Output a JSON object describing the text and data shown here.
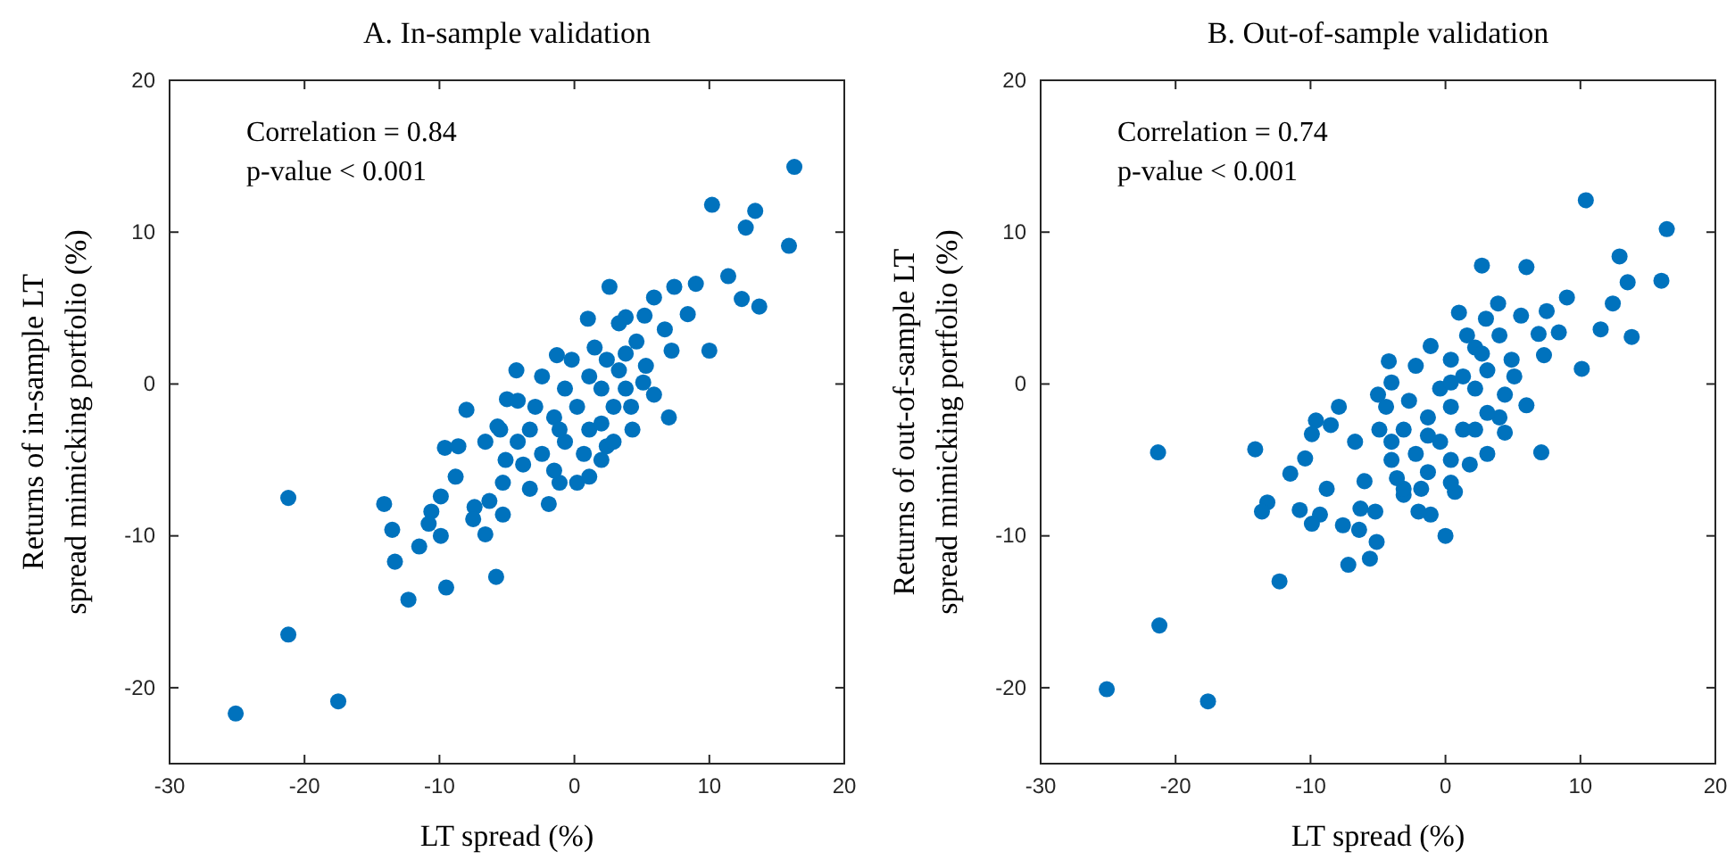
{
  "chart_data": [
    {
      "type": "scatter",
      "title": "A. In-sample validation",
      "xlabel": "LT spread (%)",
      "ylabel": "Returns of in-sample LT\nspread mimicking portfolio (%)",
      "annotations": [
        "Correlation = 0.84",
        "p-value < 0.001"
      ],
      "xlim": [
        -30,
        20
      ],
      "ylim": [
        -25,
        20
      ],
      "xticks": [
        -30,
        -20,
        -10,
        0,
        10,
        20
      ],
      "yticks": [
        -20,
        -10,
        0,
        10,
        20
      ],
      "grid": false,
      "marker": "circle",
      "series": [
        {
          "color": "#0072bd",
          "x": [
            16.3,
            10.2,
            13.4,
            12.7,
            15.9,
            11.4,
            12.4,
            13.7,
            2.6,
            7.4,
            9.0,
            5.9,
            8.4,
            10.0,
            5.2,
            3.8,
            1.0,
            6.7,
            7.2,
            7.0,
            5.9,
            4.3,
            2.4,
            0.2,
            -1.9,
            -4.3,
            -8.0,
            -9.6,
            -8.6,
            -8.8,
            -6.6,
            -5.7,
            -5.0,
            -1.3,
            -21.2,
            -14.1,
            -9.9,
            -10.6,
            -13.5,
            -10.8,
            -9.9,
            -11.5,
            -13.3,
            -7.4,
            -6.6,
            -6.3,
            -5.3,
            -12.3,
            -9.5,
            -5.8,
            -21.2,
            -17.5,
            -25.1,
            -7.5,
            -5.3,
            -3.3,
            -1.1,
            1.1,
            2.0,
            2.9,
            4.2,
            5.1,
            5.3,
            4.6,
            3.3,
            1.5,
            -0.2,
            -2.4,
            -4.2,
            -5.5,
            -5.1,
            -3.3,
            -1.5,
            0.2,
            2.0,
            3.3,
            -2.4,
            -0.7,
            1.1,
            2.9,
            -3.8,
            -1.5,
            0.7,
            2.0,
            3.8,
            1.1,
            -0.7,
            -2.9,
            -1.1,
            -4.2,
            3.8,
            2.4
          ],
          "values": [
            14.3,
            11.8,
            11.4,
            10.3,
            9.1,
            7.1,
            5.6,
            5.1,
            6.4,
            6.4,
            6.6,
            5.7,
            4.6,
            2.2,
            4.5,
            4.4,
            4.3,
            3.6,
            2.2,
            -2.2,
            -0.7,
            -3.0,
            -4.1,
            -6.5,
            -7.9,
            0.9,
            -1.7,
            -4.2,
            -4.1,
            -6.1,
            -3.8,
            -2.8,
            -1.0,
            1.9,
            -7.5,
            -7.9,
            -7.4,
            -8.4,
            -9.6,
            -9.2,
            -10.0,
            -10.7,
            -11.7,
            -8.1,
            -9.9,
            -7.7,
            -8.6,
            -14.2,
            -13.4,
            -12.7,
            -16.5,
            -20.9,
            -21.7,
            -8.9,
            -6.5,
            -6.9,
            -6.5,
            -6.1,
            -5.0,
            -3.8,
            -1.5,
            0.1,
            1.2,
            2.8,
            4.0,
            2.4,
            1.6,
            0.5,
            -1.1,
            -3.0,
            -5.0,
            -3.0,
            -2.2,
            -1.5,
            -0.3,
            0.9,
            -4.6,
            -3.8,
            -3.0,
            -1.5,
            -5.3,
            -5.7,
            -4.6,
            -2.6,
            -0.3,
            0.5,
            -0.3,
            -1.5,
            -3.0,
            -3.8,
            2.0,
            1.6
          ]
        }
      ]
    },
    {
      "type": "scatter",
      "title": "B. Out-of-sample validation",
      "xlabel": "LT spread (%)",
      "ylabel": "Returns of out-of-sample LT\nspread mimicking portfolio (%)",
      "annotations": [
        "Correlation = 0.74",
        "p-value < 0.001"
      ],
      "xlim": [
        -30,
        20
      ],
      "ylim": [
        -25,
        20
      ],
      "xticks": [
        -30,
        -20,
        -10,
        0,
        10,
        20
      ],
      "yticks": [
        -20,
        -10,
        0,
        10,
        20
      ],
      "grid": false,
      "marker": "circle",
      "series": [
        {
          "color": "#0072bd",
          "x": [
            10.4,
            16.4,
            12.9,
            16.0,
            13.5,
            12.4,
            11.5,
            13.8,
            10.1,
            9.0,
            7.5,
            8.4,
            6.9,
            7.3,
            6.0,
            2.7,
            3.9,
            5.6,
            1.0,
            3.0,
            5.1,
            6.0,
            7.1,
            4.4,
            0,
            -1.1,
            -2.0,
            0.7,
            -3.1,
            -21.3,
            -14.1,
            -7.9,
            -9.6,
            -8.5,
            -9.9,
            -10.4,
            -11.5,
            -8.8,
            -13.2,
            -13.6,
            -10.8,
            -9.3,
            -9.9,
            -7.6,
            -6.4,
            -5.1,
            -6.3,
            -5.2,
            -7.2,
            -5.6,
            -12.3,
            -21.2,
            -25.1,
            -17.6,
            -4.2,
            -5.0,
            -6.7,
            -6.0,
            -1.1,
            1.6,
            -4.9,
            -4.0,
            -3.1,
            -1.8,
            0.4,
            1.8,
            3.1,
            4.0,
            4.4,
            4.9,
            4.0,
            2.2,
            0.4,
            -2.2,
            -4.0,
            -4.4,
            -3.1,
            -1.3,
            0.4,
            2.2,
            3.1,
            -2.2,
            -0.4,
            1.3,
            3.1,
            -3.6,
            -1.3,
            0.4,
            2.2,
            1.3,
            -0.4,
            -2.7,
            -1.3,
            -4.0,
            2.7,
            0.4
          ],
          "values": [
            12.1,
            10.2,
            8.4,
            6.8,
            6.7,
            5.3,
            3.6,
            3.1,
            1.0,
            5.7,
            4.8,
            3.4,
            3.3,
            1.9,
            7.7,
            7.8,
            5.3,
            4.5,
            4.7,
            4.3,
            0.5,
            -1.4,
            -4.5,
            -3.2,
            -10.0,
            -8.6,
            -8.4,
            -7.1,
            -7.3,
            -4.5,
            -4.3,
            -1.5,
            -2.4,
            -2.7,
            -3.3,
            -4.9,
            -5.9,
            -6.9,
            -7.8,
            -8.4,
            -8.3,
            -8.6,
            -9.2,
            -9.3,
            -9.6,
            -10.4,
            -8.2,
            -8.4,
            -11.9,
            -11.5,
            -13.0,
            -15.9,
            -20.1,
            -20.9,
            1.5,
            -0.7,
            -3.8,
            -6.4,
            2.5,
            3.2,
            -3.0,
            -5.0,
            -6.9,
            -6.9,
            -6.5,
            -5.3,
            -4.6,
            -2.2,
            -0.7,
            1.6,
            3.2,
            2.4,
            1.6,
            1.2,
            0.1,
            -1.5,
            -3.0,
            -2.2,
            -1.5,
            -0.3,
            0.9,
            -4.6,
            -3.8,
            -3.0,
            -1.9,
            -6.2,
            -5.8,
            -5.0,
            -3.0,
            0.5,
            -0.3,
            -1.1,
            -3.4,
            -3.8,
            2.0,
            0.1
          ]
        }
      ]
    }
  ]
}
